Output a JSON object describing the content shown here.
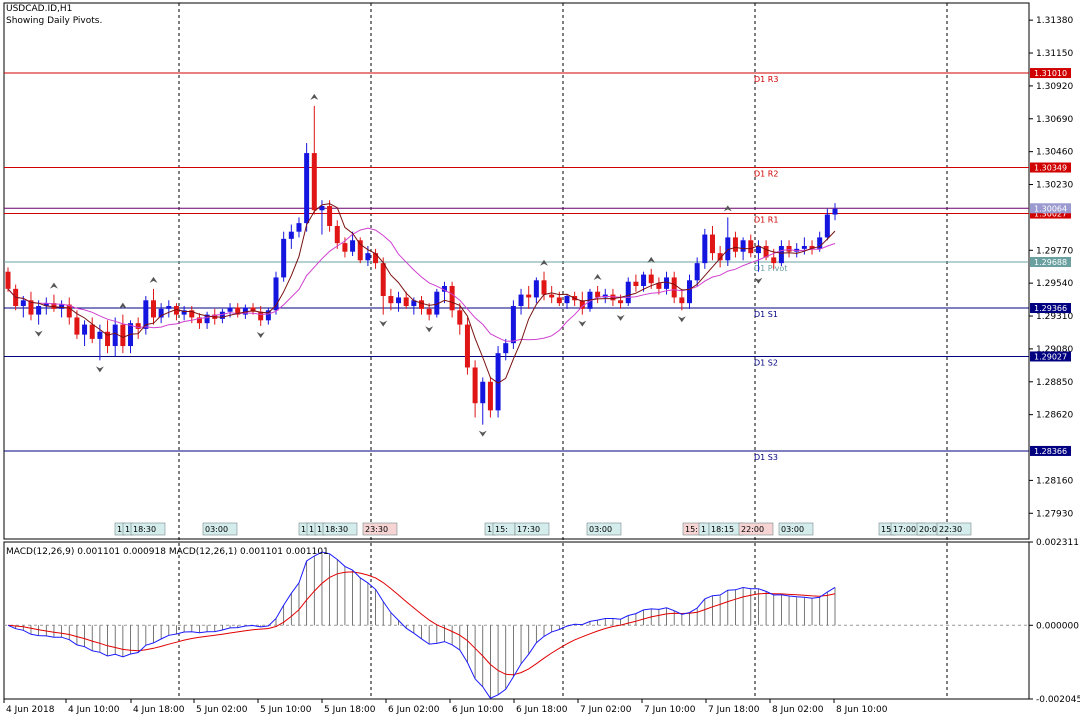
{
  "window": {
    "title": "USDCAD.ID,H1",
    "subtitle": "Showing Daily Pivots."
  },
  "colors": {
    "bull": "#1515e0",
    "bear": "#e01515",
    "resistance": "#d00000",
    "support": "#000080",
    "pivot": "#6aa0a0",
    "ma_fast": "#7a1010",
    "ma_slow": "#d040d0",
    "macd_main": "#1a1aff",
    "macd_signal": "#e00000",
    "hist": "#555555"
  },
  "price_axis": {
    "min": 1.2775,
    "max": 1.315,
    "ticks": [
      "1.31380",
      "1.31150",
      "1.30920",
      "1.30690",
      "1.30460",
      "1.30230",
      "1.29770",
      "1.29540",
      "1.29310",
      "1.29080",
      "1.28850",
      "1.28620",
      "1.28160",
      "1.27930"
    ]
  },
  "pivots": [
    {
      "name": "D1 R3",
      "value": 1.3101,
      "kind": "resistance",
      "tag": "1.31010"
    },
    {
      "name": "D1 R2",
      "value": 1.30349,
      "kind": "resistance",
      "tag": "1.30349"
    },
    {
      "name": "D1 R1",
      "value": 1.30027,
      "kind": "resistance",
      "tag": "1.30027"
    },
    {
      "name": "D1 Pivot",
      "value": 1.29688,
      "kind": "pivot",
      "tag": "1.29688"
    },
    {
      "name": "D1 S1",
      "value": 1.29366,
      "kind": "support",
      "tag": "1.29366"
    },
    {
      "name": "D1 S2",
      "value": 1.29027,
      "kind": "support",
      "tag": "1.29027"
    },
    {
      "name": "D1 S3",
      "value": 1.28366,
      "kind": "support",
      "tag": "1.28366"
    }
  ],
  "current_price": {
    "value": 1.30064,
    "tag": "1.30064"
  },
  "time_axis": [
    "4 Jun 2018",
    "4 Jun 10:00",
    "4 Jun 18:00",
    "5 Jun 02:00",
    "5 Jun 10:00",
    "5 Jun 18:00",
    "6 Jun 02:00",
    "6 Jun 10:00",
    "6 Jun 18:00",
    "7 Jun 02:00",
    "7 Jun 10:00",
    "7 Jun 18:00",
    "8 Jun 02:00",
    "8 Jun 10:00"
  ],
  "session_labels": [
    "1",
    "1",
    "18:30",
    "03:00",
    "1",
    "1",
    "1",
    "18:30",
    "23:30",
    "1",
    "15:",
    "17:30",
    "03:00",
    "15:",
    "1",
    "18:15",
    "22:00",
    "03:00",
    "15",
    "17:00",
    "20:0",
    "22:30"
  ],
  "macd": {
    "label": "MACD(12,26,9) 0.001101 0.000918 MACD(12,26,1) 0.001101 0.001101",
    "ticks": [
      "0.002311",
      "0.000000",
      "-0.002045"
    ],
    "min": -0.002045,
    "max": 0.002311
  },
  "candles": [
    [
      1.2962,
      1.2965,
      1.2948,
      1.295
    ],
    [
      1.295,
      1.2953,
      1.2935,
      1.2938
    ],
    [
      1.2938,
      1.2945,
      1.293,
      1.2942
    ],
    [
      1.2942,
      1.2948,
      1.2928,
      1.2932
    ],
    [
      1.2932,
      1.2942,
      1.2925,
      1.2938
    ],
    [
      1.2938,
      1.2944,
      1.2932,
      1.294
    ],
    [
      1.294,
      1.2946,
      1.2934,
      1.2936
    ],
    [
      1.2936,
      1.2942,
      1.293,
      1.2939
    ],
    [
      1.2939,
      1.2944,
      1.2925,
      1.293
    ],
    [
      1.293,
      1.2935,
      1.2915,
      1.2918
    ],
    [
      1.2918,
      1.2928,
      1.291,
      1.2925
    ],
    [
      1.2925,
      1.293,
      1.2912,
      1.2915
    ],
    [
      1.2915,
      1.2925,
      1.29,
      1.292
    ],
    [
      1.292,
      1.2928,
      1.2905,
      1.291
    ],
    [
      1.291,
      1.293,
      1.2903,
      1.2925
    ],
    [
      1.2925,
      1.2932,
      1.2905,
      1.291
    ],
    [
      1.291,
      1.2928,
      1.2905,
      1.2926
    ],
    [
      1.2926,
      1.293,
      1.2915,
      1.2922
    ],
    [
      1.2922,
      1.2945,
      1.2918,
      1.2942
    ],
    [
      1.2942,
      1.295,
      1.2925,
      1.293
    ],
    [
      1.293,
      1.294,
      1.2926,
      1.2936
    ],
    [
      1.2936,
      1.2942,
      1.293,
      1.2938
    ],
    [
      1.2938,
      1.294,
      1.2928,
      1.2932
    ],
    [
      1.2932,
      1.2938,
      1.2928,
      1.2935
    ],
    [
      1.2935,
      1.2938,
      1.2926,
      1.293
    ],
    [
      1.293,
      1.2933,
      1.2922,
      1.2926
    ],
    [
      1.2926,
      1.2934,
      1.2922,
      1.2932
    ],
    [
      1.2932,
      1.2936,
      1.2925,
      1.2929
    ],
    [
      1.2929,
      1.2936,
      1.2926,
      1.2934
    ],
    [
      1.2934,
      1.294,
      1.293,
      1.2937
    ],
    [
      1.2937,
      1.294,
      1.293,
      1.2932
    ],
    [
      1.2932,
      1.2939,
      1.2929,
      1.2937
    ],
    [
      1.2937,
      1.294,
      1.2932,
      1.2934
    ],
    [
      1.2934,
      1.2938,
      1.2924,
      1.2928
    ],
    [
      1.2928,
      1.2937,
      1.2925,
      1.2935
    ],
    [
      1.2935,
      1.2962,
      1.2932,
      1.2958
    ],
    [
      1.2958,
      1.299,
      1.2955,
      1.2985
    ],
    [
      1.2985,
      1.2995,
      1.2978,
      1.299
    ],
    [
      1.299,
      1.3,
      1.2986,
      1.2996
    ],
    [
      1.2996,
      1.3052,
      1.299,
      1.3045
    ],
    [
      1.3045,
      1.3078,
      1.3002,
      1.3005
    ],
    [
      1.3005,
      1.3012,
      1.2988,
      1.3008
    ],
    [
      1.3008,
      1.3012,
      1.299,
      1.2994
    ],
    [
      1.2994,
      1.2998,
      1.2978,
      1.2982
    ],
    [
      1.2982,
      1.2986,
      1.2972,
      1.2976
    ],
    [
      1.2976,
      1.299,
      1.2973,
      1.2984
    ],
    [
      1.2984,
      1.2986,
      1.2968,
      1.297
    ],
    [
      1.297,
      1.298,
      1.2966,
      1.2975
    ],
    [
      1.2975,
      1.2978,
      1.2964,
      1.2968
    ],
    [
      1.2968,
      1.2972,
      1.2932,
      1.2945
    ],
    [
      1.2945,
      1.295,
      1.2935,
      1.294
    ],
    [
      1.294,
      1.2948,
      1.2934,
      1.2944
    ],
    [
      1.2944,
      1.2948,
      1.2936,
      1.2938
    ],
    [
      1.2938,
      1.2944,
      1.2932,
      1.2942
    ],
    [
      1.2942,
      1.2945,
      1.2932,
      1.2936
    ],
    [
      1.2936,
      1.294,
      1.2928,
      1.2932
    ],
    [
      1.2932,
      1.295,
      1.293,
      1.2948
    ],
    [
      1.2948,
      1.2955,
      1.294,
      1.2952
    ],
    [
      1.2952,
      1.2955,
      1.293,
      1.2935
    ],
    [
      1.2935,
      1.294,
      1.2918,
      1.2925
    ],
    [
      1.2925,
      1.293,
      1.289,
      1.2895
    ],
    [
      1.2895,
      1.29,
      1.286,
      1.287
    ],
    [
      1.287,
      1.2888,
      1.2855,
      1.2885
    ],
    [
      1.2885,
      1.2888,
      1.286,
      1.2865
    ],
    [
      1.2865,
      1.291,
      1.286,
      1.2905
    ],
    [
      1.2905,
      1.2915,
      1.29,
      1.2912
    ],
    [
      1.2912,
      1.2942,
      1.2908,
      1.2938
    ],
    [
      1.2938,
      1.295,
      1.2932,
      1.2946
    ],
    [
      1.2946,
      1.2952,
      1.2936,
      1.2944
    ],
    [
      1.2944,
      1.2958,
      1.294,
      1.2956
    ],
    [
      1.2956,
      1.2962,
      1.2942,
      1.2946
    ],
    [
      1.2946,
      1.2952,
      1.294,
      1.2944
    ],
    [
      1.2944,
      1.2948,
      1.2938,
      1.294
    ],
    [
      1.294,
      1.2946,
      1.2936,
      1.2945
    ],
    [
      1.2945,
      1.2948,
      1.2938,
      1.2942
    ],
    [
      1.2942,
      1.2948,
      1.2932,
      1.2936
    ],
    [
      1.2936,
      1.295,
      1.2934,
      1.2948
    ],
    [
      1.2948,
      1.2952,
      1.294,
      1.2944
    ],
    [
      1.2944,
      1.295,
      1.294,
      1.2946
    ],
    [
      1.2946,
      1.295,
      1.2938,
      1.2942
    ],
    [
      1.2942,
      1.2946,
      1.2936,
      1.294
    ],
    [
      1.294,
      1.2958,
      1.2938,
      1.2955
    ],
    [
      1.2955,
      1.296,
      1.2948,
      1.2952
    ],
    [
      1.2952,
      1.2962,
      1.2948,
      1.296
    ],
    [
      1.296,
      1.2964,
      1.295,
      1.2954
    ],
    [
      1.2954,
      1.2958,
      1.2946,
      1.295
    ],
    [
      1.295,
      1.2962,
      1.2946,
      1.2958
    ],
    [
      1.2958,
      1.2962,
      1.294,
      1.2944
    ],
    [
      1.2944,
      1.295,
      1.2935,
      1.294
    ],
    [
      1.294,
      1.296,
      1.2936,
      1.2956
    ],
    [
      1.2956,
      1.2972,
      1.2952,
      1.2968
    ],
    [
      1.2968,
      1.2992,
      1.2964,
      1.2988
    ],
    [
      1.2988,
      1.2994,
      1.297,
      1.2975
    ],
    [
      1.2975,
      1.298,
      1.2965,
      1.297
    ],
    [
      1.297,
      1.3,
      1.2966,
      1.2986
    ],
    [
      1.2986,
      1.299,
      1.2972,
      1.2976
    ],
    [
      1.2976,
      1.2986,
      1.297,
      1.2984
    ],
    [
      1.2984,
      1.2988,
      1.2972,
      1.2975
    ],
    [
      1.2975,
      1.2984,
      1.2962,
      1.298
    ],
    [
      1.298,
      1.2984,
      1.297,
      1.2972
    ],
    [
      1.2972,
      1.2978,
      1.2964,
      1.2968
    ],
    [
      1.2968,
      1.2984,
      1.2966,
      1.298
    ],
    [
      1.298,
      1.2984,
      1.2972,
      1.2976
    ],
    [
      1.2976,
      1.2982,
      1.2972,
      1.2978
    ],
    [
      1.2978,
      1.2986,
      1.2974,
      1.298
    ],
    [
      1.298,
      1.2984,
      1.2974,
      1.2978
    ],
    [
      1.2978,
      1.299,
      1.2976,
      1.2986
    ],
    [
      1.2986,
      1.3006,
      1.2984,
      1.3002
    ],
    [
      1.3002,
      1.301,
      1.2998,
      1.3006
    ]
  ]
}
